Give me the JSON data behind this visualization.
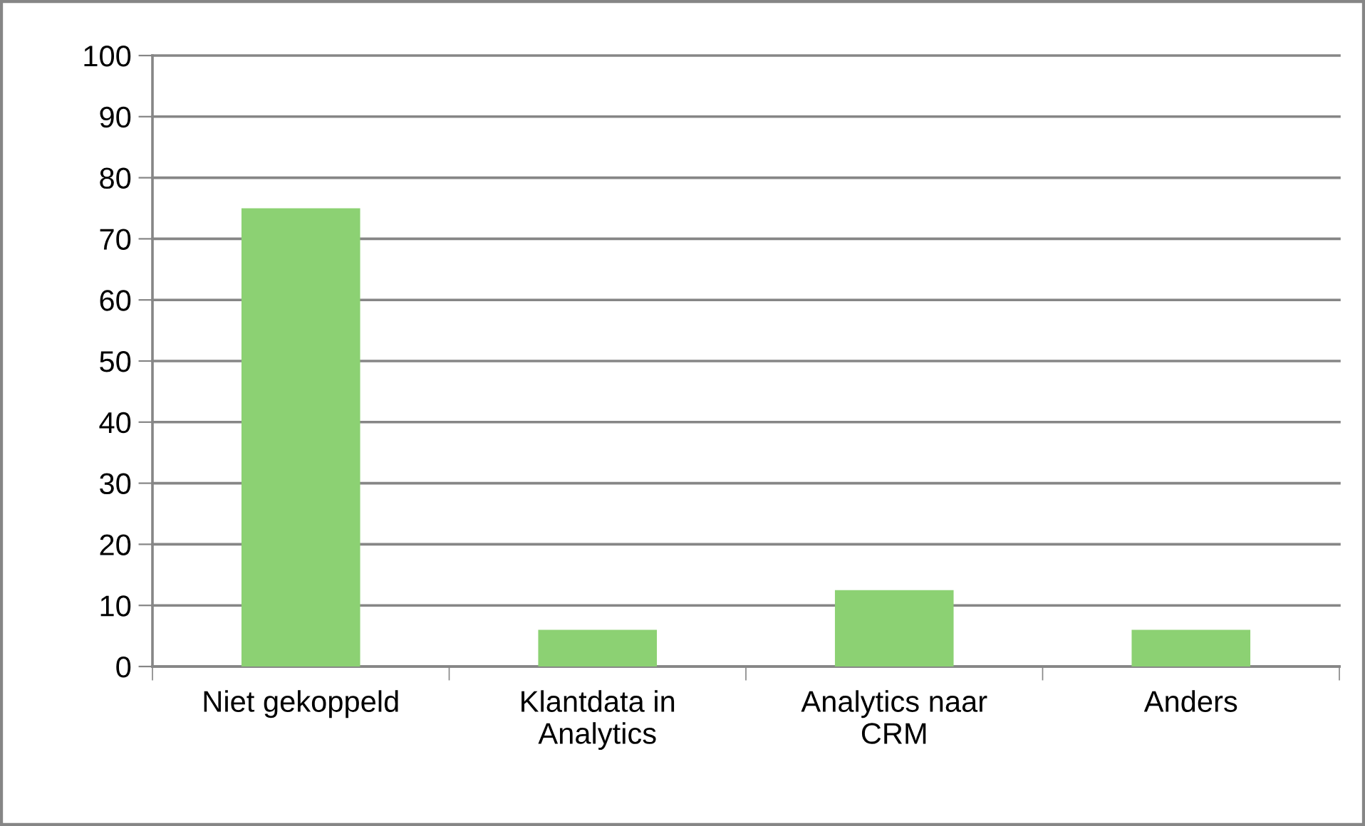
{
  "chart_data": {
    "type": "bar",
    "categories": [
      "Niet gekoppeld",
      "Klantdata in\nAnalytics",
      "Analytics naar\nCRM",
      "Anders"
    ],
    "values": [
      75,
      6,
      12.5,
      6
    ],
    "color": "#8cd173",
    "ylim": [
      0,
      100
    ],
    "yticks": [
      0,
      10,
      20,
      30,
      40,
      50,
      60,
      70,
      80,
      90,
      100
    ],
    "grid": "y",
    "legend": false
  }
}
